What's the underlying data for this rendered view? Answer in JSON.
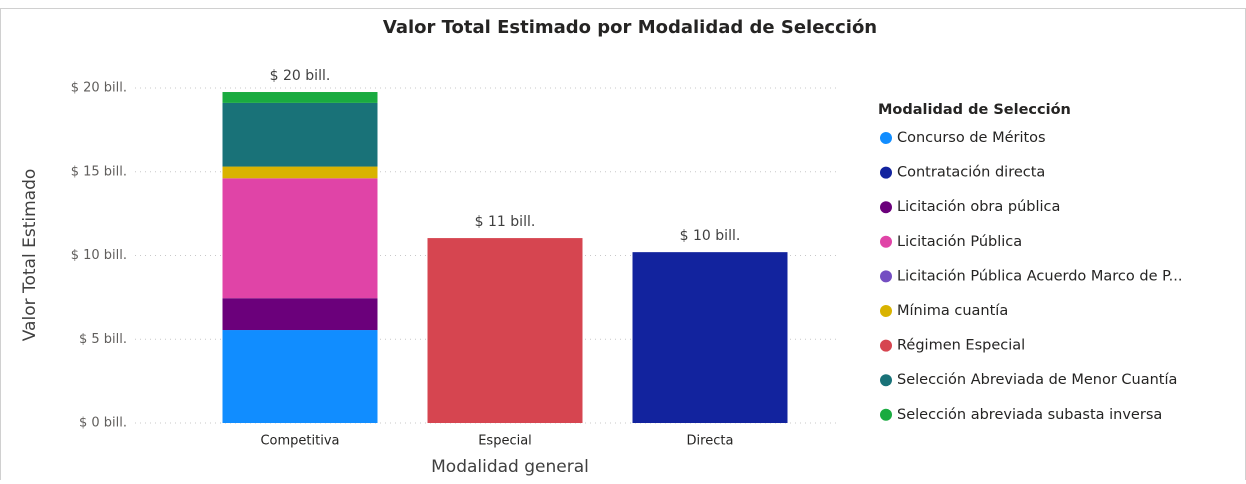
{
  "chart_data": {
    "type": "stacked_bar",
    "title": "Valor Total Estimado por Modalidad de Selección",
    "x_label": "Modalidad general",
    "y_label": "Valor Total Estimado",
    "legend_title": "Modalidad de Selección",
    "legend_position": "right",
    "grid": true,
    "categories": [
      "Competitiva",
      "Especial",
      "Directa"
    ],
    "total_labels": [
      "$ 20 bill.",
      "$ 11 bill.",
      "$ 10 bill."
    ],
    "ylim": [
      0,
      20
    ],
    "yticks": [
      {
        "value": 0,
        "label": "$ 0 bill."
      },
      {
        "value": 5,
        "label": "$ 5 bill."
      },
      {
        "value": 10,
        "label": "$ 10 bill."
      },
      {
        "value": 15,
        "label": "$ 15 bill."
      },
      {
        "value": 20,
        "label": "$ 20 bill."
      }
    ],
    "series": [
      {
        "name": "Concurso de Méritos",
        "color": "#118DFF",
        "values": [
          5.55,
          null,
          null
        ]
      },
      {
        "name": "Contratación directa",
        "color": "#12239E",
        "values": [
          null,
          null,
          10.2
        ]
      },
      {
        "name": "Licitación obra pública",
        "color": "#6B007B",
        "values": [
          1.9,
          null,
          null
        ]
      },
      {
        "name": "Licitación Pública",
        "color": "#E044A7",
        "values": [
          7.16,
          null,
          null
        ]
      },
      {
        "name": "Licitación Pública Acuerdo Marco de P...",
        "color": "#744EC2",
        "values": [
          0,
          null,
          null
        ]
      },
      {
        "name": "Mínima cuantía",
        "color": "#D9B300",
        "values": [
          0.7,
          null,
          null
        ]
      },
      {
        "name": "Régimen Especial",
        "color": "#D64550",
        "values": [
          null,
          11.04,
          null
        ]
      },
      {
        "name": "Selección Abreviada de Menor Cuantía",
        "color": "#197278",
        "values": [
          3.8,
          null,
          null
        ]
      },
      {
        "name": "Selección abreviada subasta inversa",
        "color": "#1AAB40",
        "values": [
          0.65,
          null,
          null
        ]
      }
    ]
  }
}
